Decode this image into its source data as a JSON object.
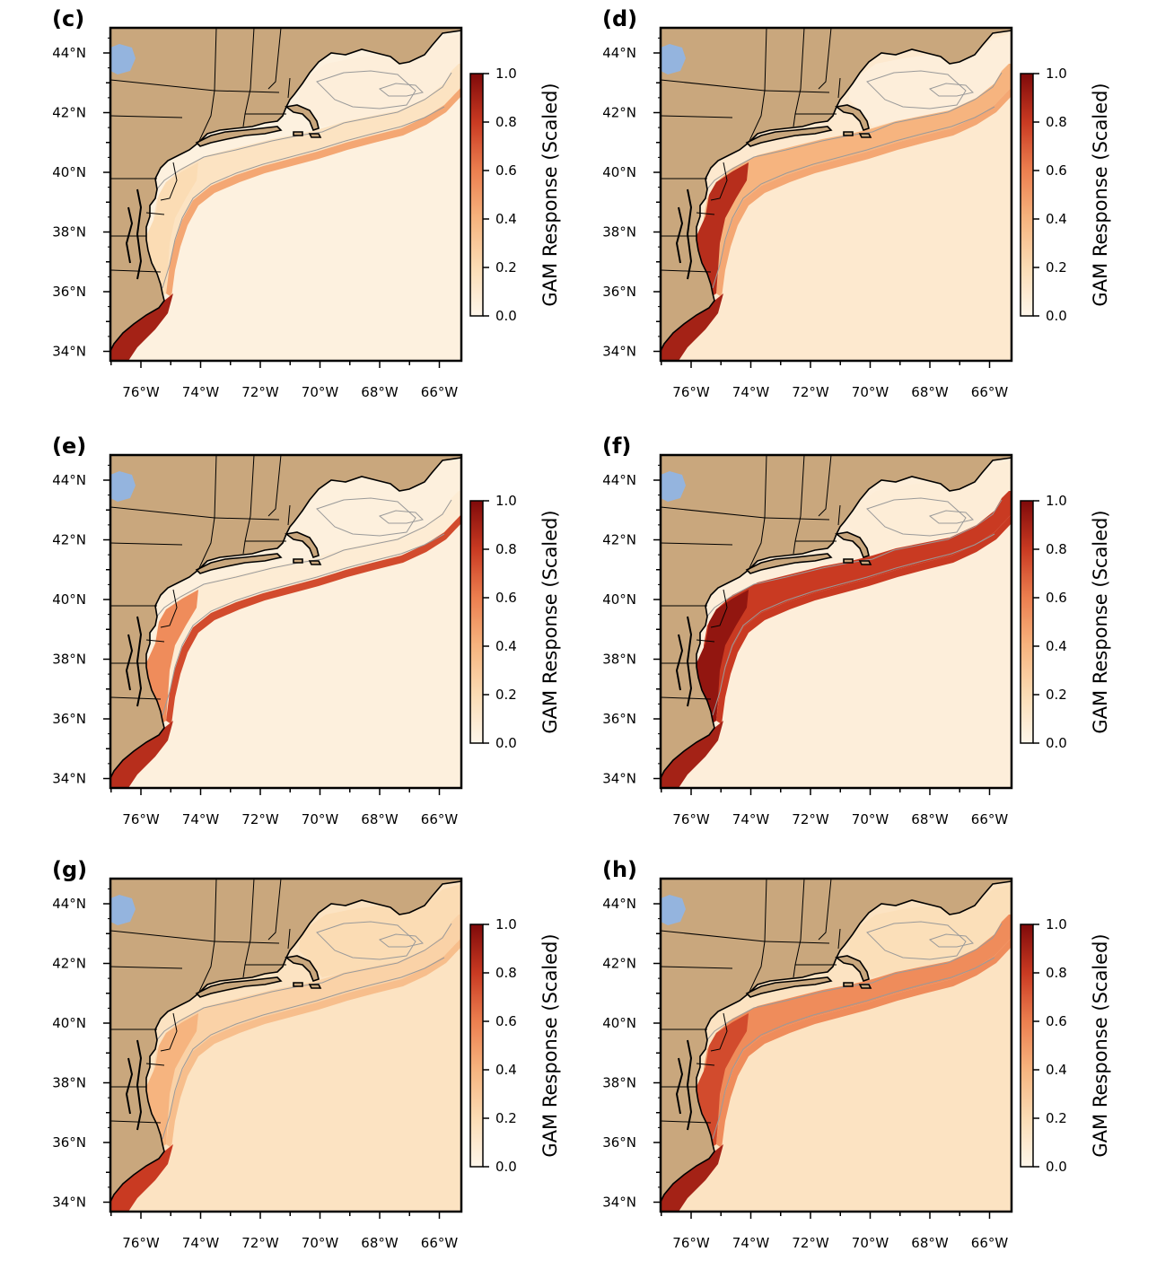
{
  "colorbar": {
    "label": "GAM Response (Scaled)",
    "ticks": [
      "0.0",
      "0.2",
      "0.4",
      "0.6",
      "0.8",
      "1.0"
    ]
  },
  "axes": {
    "y_ticks": [
      "44°N",
      "42°N",
      "40°N",
      "38°N",
      "36°N",
      "34°N"
    ],
    "x_ticks": [
      "76°W",
      "74°W",
      "72°W",
      "70°W",
      "68°W",
      "66°W"
    ]
  },
  "colors": {
    "land": "#c9a77d",
    "lake": "#94b4de",
    "scale_low": "#fdf2e3",
    "scale_mid": "#f3a36b",
    "scale_high": "#8b0c0c",
    "isobath": "#9a9a9a",
    "coastline": "#000000"
  },
  "panels": [
    {
      "label": "(c)",
      "background_level": 0.04,
      "shelf_level": 0.15,
      "shelf_break_level": 0.45,
      "gulf_of_maine_level": 0.06,
      "south_level": 0.9,
      "mid_atlantic_inshore_level": 0.2
    },
    {
      "label": "(d)",
      "background_level": 0.1,
      "shelf_level": 0.4,
      "shelf_break_level": 0.45,
      "gulf_of_maine_level": 0.06,
      "south_level": 0.9,
      "mid_atlantic_inshore_level": 0.85
    },
    {
      "label": "(e)",
      "background_level": 0.05,
      "shelf_level": 0.08,
      "shelf_break_level": 0.75,
      "gulf_of_maine_level": 0.05,
      "south_level": 0.85,
      "mid_atlantic_inshore_level": 0.55
    },
    {
      "label": "(f)",
      "background_level": 0.06,
      "shelf_level": 0.8,
      "shelf_break_level": 0.8,
      "gulf_of_maine_level": 0.07,
      "south_level": 0.9,
      "mid_atlantic_inshore_level": 0.95
    },
    {
      "label": "(g)",
      "background_level": 0.15,
      "shelf_level": 0.25,
      "shelf_break_level": 0.35,
      "gulf_of_maine_level": 0.2,
      "south_level": 0.8,
      "mid_atlantic_inshore_level": 0.4
    },
    {
      "label": "(h)",
      "background_level": 0.15,
      "shelf_level": 0.55,
      "shelf_break_level": 0.55,
      "gulf_of_maine_level": 0.18,
      "south_level": 0.9,
      "mid_atlantic_inshore_level": 0.75
    }
  ]
}
